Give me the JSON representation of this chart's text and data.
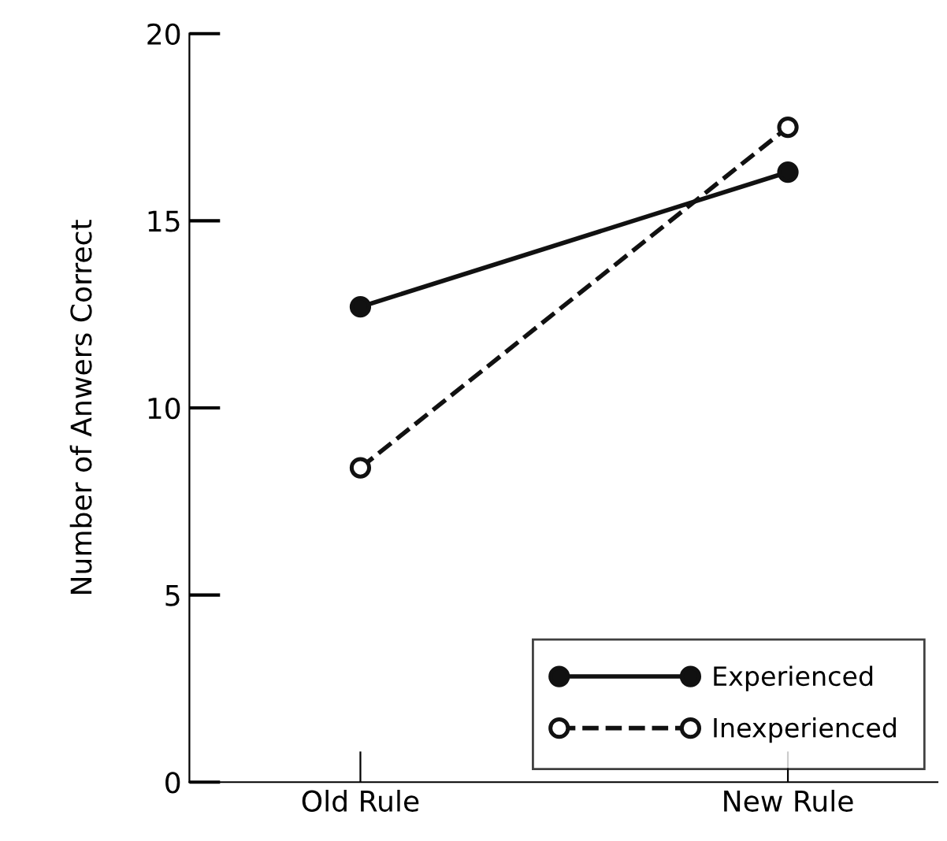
{
  "chart_data": {
    "type": "line",
    "ylabel": "Number of Anwers Correct",
    "categories": [
      "Old Rule",
      "New Rule"
    ],
    "series": [
      {
        "name": "Experienced",
        "color": "#111111",
        "values": [
          12.7,
          16.3
        ],
        "marker": "circle",
        "line_style": "solid"
      },
      {
        "name": "Inexperienced",
        "color": "#111111",
        "values": [
          8.4,
          17.5
        ],
        "marker": "circle",
        "line_style": "dashed"
      }
    ],
    "ylim": [
      0,
      20
    ],
    "yticks": [
      0,
      5,
      10,
      15,
      20
    ],
    "grid": false,
    "legend": "bottom right"
  }
}
